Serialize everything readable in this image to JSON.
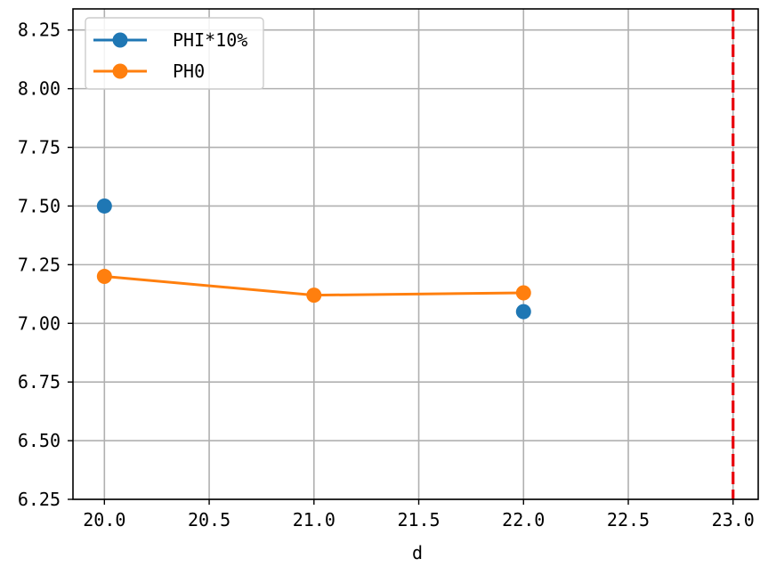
{
  "chart_data": {
    "type": "line",
    "xlabel": "d",
    "ylabel": "",
    "xlim": [
      19.85,
      23.12
    ],
    "ylim": [
      6.25,
      8.34
    ],
    "x_ticks": [
      "20.0",
      "20.5",
      "21.0",
      "21.5",
      "22.0",
      "22.5",
      "23.0"
    ],
    "y_ticks": [
      "6.25",
      "6.50",
      "6.75",
      "7.00",
      "7.25",
      "7.50",
      "7.75",
      "8.00",
      "8.25"
    ],
    "grid": true,
    "legend_position": "top-left",
    "series": [
      {
        "name": "PHI*10%",
        "color": "#1f77b4",
        "x": [
          20,
          22
        ],
        "y": [
          7.5,
          7.05
        ],
        "segments": [
          [
            0
          ],
          [
            1
          ]
        ]
      },
      {
        "name": "PH0",
        "color": "#ff7f0e",
        "x": [
          20,
          21,
          22
        ],
        "y": [
          7.2,
          7.12,
          7.13
        ],
        "segments": [
          [
            0,
            1,
            2
          ]
        ]
      }
    ],
    "vlines": [
      {
        "x": 23.0,
        "color": "#e8000b",
        "style": "dashed"
      }
    ]
  }
}
